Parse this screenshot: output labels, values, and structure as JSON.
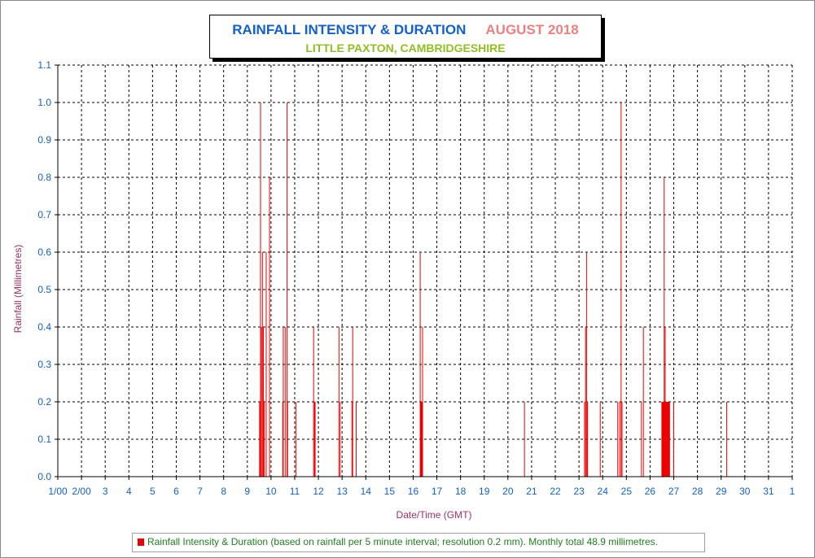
{
  "title": {
    "main": "RAINFALL INTENSITY & DURATION",
    "month": "AUGUST 2018",
    "subtitle": "LITTLE PAXTON, CAMBRIDGESHIRE"
  },
  "legend": {
    "label": "Rainfall Intensity & Duration (based on rainfall per 5 minute interval; resolution 0.2 mm). Monthly total 48.9 millimetres."
  },
  "colors": {
    "bar": "#ee0000",
    "axis_tick_labels": "#1060d0",
    "axis_title": "#a03060",
    "grid": "#000000"
  },
  "chart_data": {
    "type": "bar",
    "title": "RAINFALL INTENSITY & DURATION",
    "subtitle": "LITTLE PAXTON, CAMBRIDGESHIRE",
    "xlabel": "Date/Time (GMT)",
    "ylabel": "Rainfall (Millimetres)",
    "x_unit": "day of month (August 2018)",
    "xlim": [
      1,
      32
    ],
    "ylim": [
      0,
      1.1
    ],
    "grid": true,
    "legend_position": "bottom",
    "y_ticks": [
      "0.0",
      "0.1",
      "0.2",
      "0.3",
      "0.4",
      "0.5",
      "0.6",
      "0.7",
      "0.8",
      "0.9",
      "1.0",
      "1.1"
    ],
    "x_ticks": [
      {
        "x": 1,
        "label": "1/00"
      },
      {
        "x": 2,
        "label": "2/00"
      },
      {
        "x": 3,
        "label": "3"
      },
      {
        "x": 4,
        "label": "4"
      },
      {
        "x": 5,
        "label": "5"
      },
      {
        "x": 6,
        "label": "6"
      },
      {
        "x": 7,
        "label": "7"
      },
      {
        "x": 8,
        "label": "8"
      },
      {
        "x": 9,
        "label": "9"
      },
      {
        "x": 10,
        "label": "10"
      },
      {
        "x": 11,
        "label": "11"
      },
      {
        "x": 12,
        "label": "12"
      },
      {
        "x": 13,
        "label": "13"
      },
      {
        "x": 14,
        "label": "14"
      },
      {
        "x": 15,
        "label": "15"
      },
      {
        "x": 16,
        "label": "16"
      },
      {
        "x": 17,
        "label": "17"
      },
      {
        "x": 18,
        "label": "18"
      },
      {
        "x": 19,
        "label": "19"
      },
      {
        "x": 20,
        "label": "20"
      },
      {
        "x": 21,
        "label": "21"
      },
      {
        "x": 22,
        "label": "22"
      },
      {
        "x": 23,
        "label": "23"
      },
      {
        "x": 24,
        "label": "24"
      },
      {
        "x": 25,
        "label": "25"
      },
      {
        "x": 26,
        "label": "26"
      },
      {
        "x": 27,
        "label": "27"
      },
      {
        "x": 28,
        "label": "28"
      },
      {
        "x": 29,
        "label": "29"
      },
      {
        "x": 30,
        "label": "30"
      },
      {
        "x": 31,
        "label": "31"
      },
      {
        "x": 32,
        "label": "1"
      }
    ],
    "series": [
      {
        "name": "Rainfall Intensity & Duration",
        "points": [
          {
            "x": 9.5,
            "y": 0.2,
            "w": 0.04
          },
          {
            "x": 9.54,
            "y": 1.0,
            "w": 0.02
          },
          {
            "x": 9.58,
            "y": 0.4,
            "w": 0.03
          },
          {
            "x": 9.62,
            "y": 0.6,
            "w": 0.02
          },
          {
            "x": 9.66,
            "y": 0.4,
            "w": 0.02
          },
          {
            "x": 9.7,
            "y": 0.2,
            "w": 0.02
          },
          {
            "x": 9.78,
            "y": 0.6,
            "w": 0.02
          },
          {
            "x": 9.92,
            "y": 0.8,
            "w": 0.02
          },
          {
            "x": 10.48,
            "y": 0.2,
            "w": 0.03
          },
          {
            "x": 10.5,
            "y": 0.4,
            "w": 0.02
          },
          {
            "x": 10.58,
            "y": 0.4,
            "w": 0.02
          },
          {
            "x": 10.66,
            "y": 1.0,
            "w": 0.02
          },
          {
            "x": 10.68,
            "y": 0.2,
            "w": 0.02
          },
          {
            "x": 11.04,
            "y": 0.2,
            "w": 0.02
          },
          {
            "x": 11.78,
            "y": 0.4,
            "w": 0.02
          },
          {
            "x": 11.82,
            "y": 0.2,
            "w": 0.06
          },
          {
            "x": 12.85,
            "y": 0.4,
            "w": 0.02
          },
          {
            "x": 12.9,
            "y": 0.2,
            "w": 0.02
          },
          {
            "x": 13.4,
            "y": 0.2,
            "w": 0.02
          },
          {
            "x": 13.43,
            "y": 0.4,
            "w": 0.02
          },
          {
            "x": 13.58,
            "y": 0.2,
            "w": 0.02
          },
          {
            "x": 16.28,
            "y": 0.6,
            "w": 0.02
          },
          {
            "x": 16.3,
            "y": 0.2,
            "w": 0.1
          },
          {
            "x": 16.38,
            "y": 0.4,
            "w": 0.02
          },
          {
            "x": 20.68,
            "y": 0.2,
            "w": 0.02
          },
          {
            "x": 23.22,
            "y": 0.2,
            "w": 0.02
          },
          {
            "x": 23.26,
            "y": 0.4,
            "w": 0.02
          },
          {
            "x": 23.3,
            "y": 0.6,
            "w": 0.02
          },
          {
            "x": 23.34,
            "y": 0.2,
            "w": 0.04
          },
          {
            "x": 23.88,
            "y": 0.2,
            "w": 0.02
          },
          {
            "x": 24.62,
            "y": 0.2,
            "w": 0.02
          },
          {
            "x": 24.7,
            "y": 0.2,
            "w": 0.02
          },
          {
            "x": 24.76,
            "y": 1.0,
            "w": 0.02
          },
          {
            "x": 24.8,
            "y": 0.2,
            "w": 0.02
          },
          {
            "x": 25.62,
            "y": 0.2,
            "w": 0.02
          },
          {
            "x": 25.7,
            "y": 0.4,
            "w": 0.02
          },
          {
            "x": 26.48,
            "y": 0.2,
            "w": 0.36
          },
          {
            "x": 26.58,
            "y": 0.8,
            "w": 0.02
          },
          {
            "x": 26.62,
            "y": 0.4,
            "w": 0.02
          },
          {
            "x": 26.98,
            "y": 0.2,
            "w": 0.02
          },
          {
            "x": 29.22,
            "y": 0.2,
            "w": 0.02
          }
        ]
      }
    ]
  }
}
